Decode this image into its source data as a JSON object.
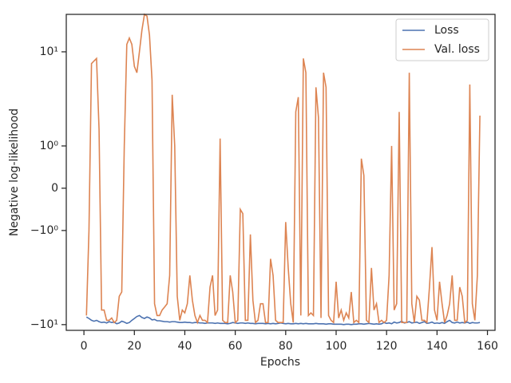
{
  "chart_data": {
    "type": "line",
    "x_label": "Epochs",
    "y_label": "Negative log-likelihood",
    "xlim": [
      -7,
      163
    ],
    "xticks": [
      0,
      20,
      40,
      60,
      80,
      100,
      120,
      140,
      160
    ],
    "ylim": [
      -11.5,
      25
    ],
    "yscale": "symlog",
    "yticks": [
      {
        "value": -10,
        "label": "−10¹"
      },
      {
        "value": -1,
        "label": "−10⁰"
      },
      0,
      {
        "value": 1,
        "label": "10⁰"
      },
      {
        "value": 10,
        "label": "10¹"
      }
    ],
    "legend": "upper right",
    "x": [
      1,
      2,
      3,
      4,
      5,
      6,
      7,
      8,
      9,
      10,
      11,
      12,
      13,
      14,
      15,
      16,
      17,
      18,
      19,
      20,
      21,
      22,
      23,
      24,
      25,
      26,
      27,
      28,
      29,
      30,
      31,
      32,
      33,
      34,
      35,
      36,
      37,
      38,
      39,
      40,
      41,
      42,
      43,
      44,
      45,
      46,
      47,
      48,
      49,
      50,
      51,
      52,
      53,
      54,
      55,
      56,
      57,
      58,
      59,
      60,
      61,
      62,
      63,
      64,
      65,
      66,
      67,
      68,
      69,
      70,
      71,
      72,
      73,
      74,
      75,
      76,
      77,
      78,
      79,
      80,
      81,
      82,
      83,
      84,
      85,
      86,
      87,
      88,
      89,
      90,
      91,
      92,
      93,
      94,
      95,
      96,
      97,
      98,
      99,
      100,
      101,
      102,
      103,
      104,
      105,
      106,
      107,
      108,
      109,
      110,
      111,
      112,
      113,
      114,
      115,
      116,
      117,
      118,
      119,
      120,
      121,
      122,
      123,
      124,
      125,
      126,
      127,
      128,
      129,
      130,
      131,
      132,
      133,
      134,
      135,
      136,
      137,
      138,
      139,
      140,
      141,
      142,
      143,
      144,
      145,
      146,
      147,
      148,
      149,
      150,
      151,
      152,
      153,
      154,
      155,
      156,
      157
    ],
    "series": [
      {
        "name": "Loss",
        "color": "#4c72b0",
        "values": [
          -8.3,
          -8.6,
          -9,
          -9.2,
          -9,
          -9.3,
          -9.5,
          -9.4,
          -9.6,
          -9.3,
          -9.5,
          -9.4,
          -9.8,
          -9.6,
          -9.2,
          -9.4,
          -9.7,
          -9.5,
          -9,
          -8.6,
          -8.2,
          -8,
          -8.4,
          -8.6,
          -8.3,
          -8.5,
          -8.9,
          -8.8,
          -9.1,
          -9.1,
          -9.2,
          -9.3,
          -9.3,
          -9.4,
          -9.3,
          -9.3,
          -9.4,
          -9.5,
          -9.5,
          -9.4,
          -9.5,
          -9.5,
          -9.6,
          -9.5,
          -9.5,
          -9.6,
          -9.6,
          -9.7,
          -9.6,
          -9.6,
          -9.6,
          -9.7,
          -9.6,
          -9.7,
          -9.7,
          -9.7,
          -9.8,
          -9.7,
          -9.5,
          -9.6,
          -9.7,
          -9.6,
          -9.6,
          -9.7,
          -9.6,
          -9.7,
          -9.7,
          -9.8,
          -9.7,
          -9.7,
          -9.7,
          -9.8,
          -9.7,
          -9.8,
          -9.7,
          -9.8,
          -9.7,
          -9.6,
          -9.7,
          -9.8,
          -9.7,
          -9.8,
          -9.8,
          -9.7,
          -9.8,
          -9.7,
          -9.8,
          -9.7,
          -9.8,
          -9.8,
          -9.8,
          -9.7,
          -9.8,
          -9.8,
          -9.8,
          -9.9,
          -9.8,
          -9.8,
          -9.9,
          -9.9,
          -9.9,
          -9.9,
          -10,
          -9.9,
          -9.9,
          -10,
          -9.9,
          -9.9,
          -9.8,
          -9.8,
          -9.9,
          -9.8,
          -9.7,
          -9.8,
          -9.9,
          -9.8,
          -9.9,
          -9.8,
          -9.5,
          -9.7,
          -9.6,
          -9.8,
          -9.4,
          -9.6,
          -9.5,
          -9.2,
          -9.6,
          -9.5,
          -9.3,
          -9.6,
          -9.5,
          -9.4,
          -9.7,
          -9.5,
          -9.3,
          -9.7,
          -9.6,
          -9.4,
          -9.7,
          -9.6,
          -9.7,
          -9.5,
          -9.7,
          -9.3,
          -9,
          -9.5,
          -9.6,
          -9.4,
          -9.6,
          -9.5,
          -9.6,
          -9.4,
          -9.7,
          -9.5,
          -9.6,
          -9.6,
          -9.5
        ]
      },
      {
        "name": "Val. loss",
        "color": "#dd8452",
        "values": [
          -8,
          -1,
          7.5,
          8,
          8.5,
          1.5,
          -7,
          -7,
          -9,
          -9,
          -8.5,
          -9.5,
          -9,
          -5,
          -4.5,
          1,
          12,
          14,
          12,
          7,
          6,
          10,
          17,
          25,
          24,
          15,
          5,
          -6,
          -8,
          -8,
          -7,
          -6.5,
          -6,
          -3,
          3.5,
          1,
          -5,
          -9,
          -7,
          -7.5,
          -6,
          -3,
          -5.5,
          -8,
          -9.5,
          -8,
          -9,
          -9,
          -9.5,
          -4,
          -3,
          -8,
          -7,
          1.2,
          -9,
          -9.5,
          -9.5,
          -3,
          -4.5,
          -9.5,
          -9,
          -0.5,
          -0.6,
          -9,
          -9,
          -1.1,
          -5.5,
          -9.5,
          -9,
          -6,
          -6,
          -9.5,
          -9.5,
          -2,
          -3,
          -9,
          -9.5,
          -9.5,
          -9.5,
          -0.8,
          -2.5,
          -6,
          -9.5,
          2.3,
          3.3,
          -8,
          8.5,
          6,
          -8,
          -7.5,
          -8,
          4.2,
          2,
          -8.5,
          6,
          4.2,
          -8,
          -9,
          -9.5,
          -3.5,
          -8.5,
          -7,
          -9,
          -7.5,
          -8.5,
          -4.5,
          -9.5,
          -9,
          -9.5,
          0.7,
          0.3,
          -9,
          -9.5,
          -2.5,
          -7,
          -6,
          -9.5,
          -9,
          -9.5,
          -9,
          -3,
          1,
          -7,
          -6,
          2.3,
          -9.5,
          -9.5,
          -9.5,
          6,
          -6,
          -9.5,
          -5,
          -5.5,
          -9,
          -9,
          -9.5,
          -4,
          -1.5,
          -7,
          -9,
          -3.5,
          -6,
          -9.5,
          -8,
          -6,
          -3,
          -9,
          -9,
          -4,
          -5,
          -9.5,
          -9,
          4.5,
          -6,
          -9,
          -3,
          2.1
        ]
      }
    ]
  }
}
